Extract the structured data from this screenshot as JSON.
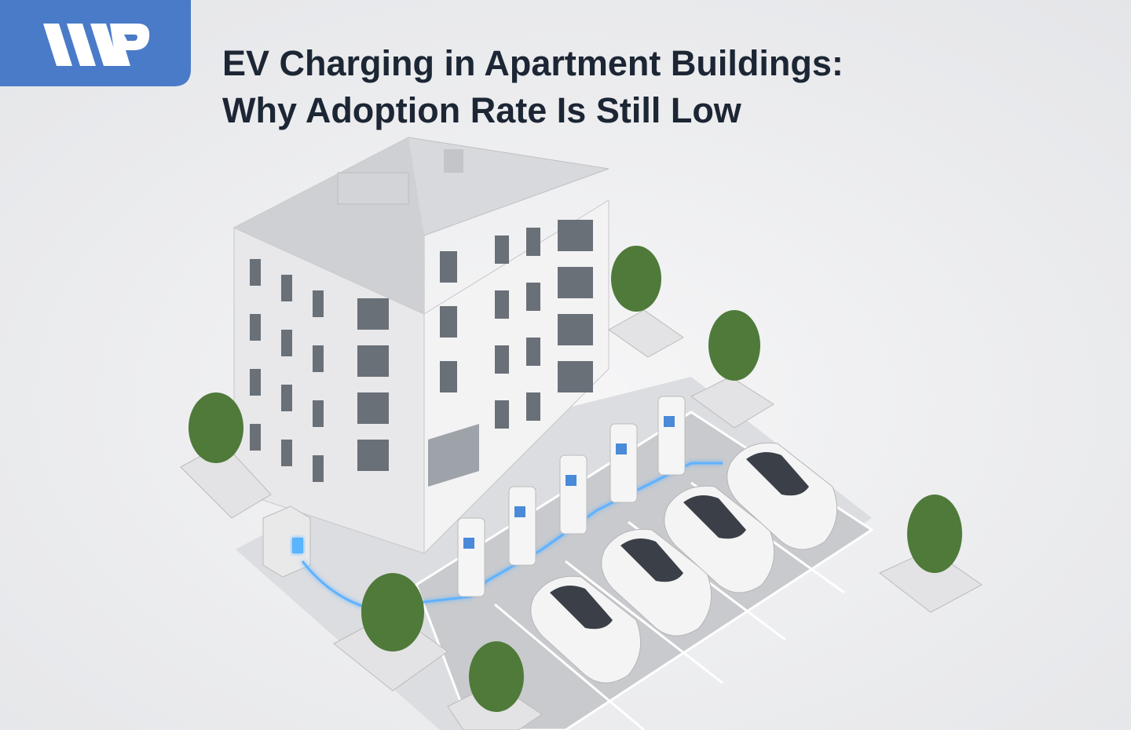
{
  "header": {
    "title_lines": [
      "EV Charging in Apartment Buildings:",
      "Why Adoption Rate Is Still Low"
    ]
  }
}
